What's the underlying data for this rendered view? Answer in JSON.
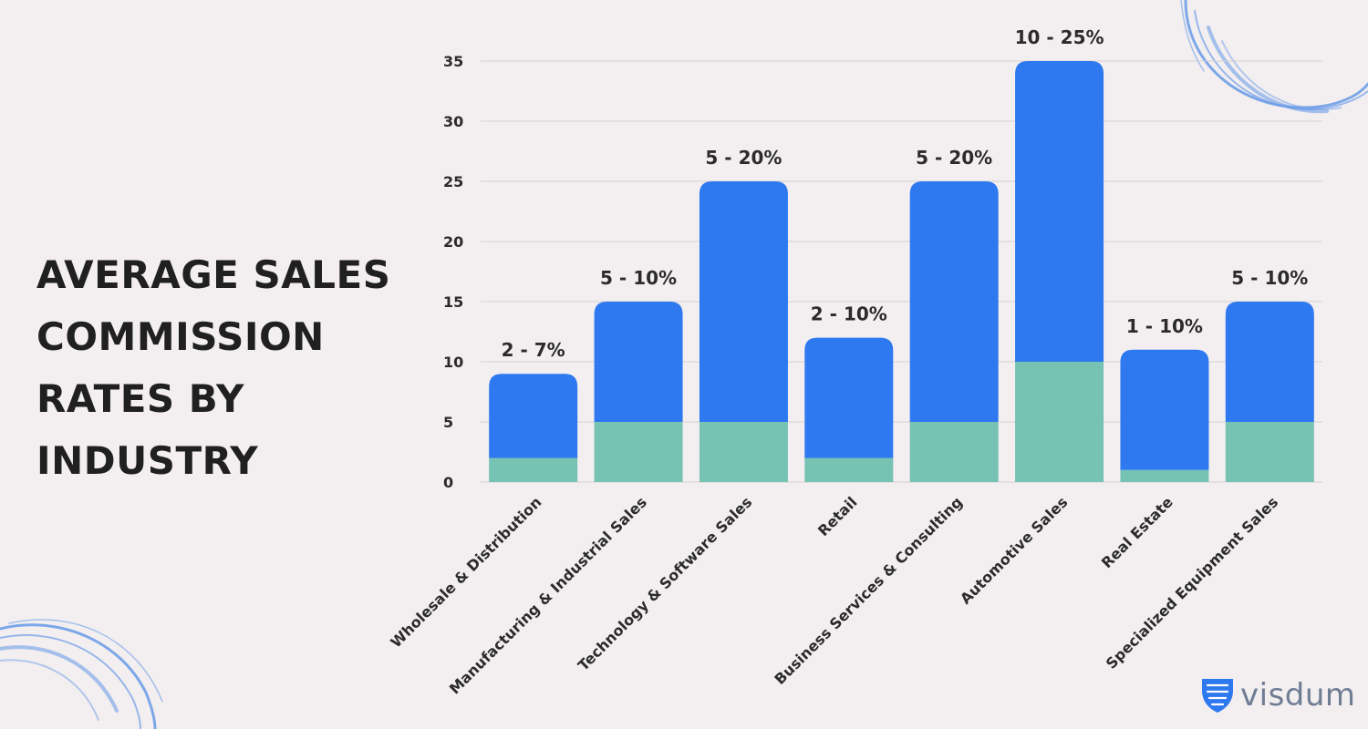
{
  "title": "AVERAGE SALES COMMISSION RATES BY INDUSTRY",
  "brand": {
    "name": "visdum",
    "icon": "shield-icon"
  },
  "colors": {
    "low": "#76c2b3",
    "high": "#2e78f0",
    "grid": "#d4d0d1",
    "text": "#2b2b2b",
    "background": "#f3eff0",
    "decor": "#6f9ee8"
  },
  "chart_data": {
    "type": "bar",
    "stacked": true,
    "categories": [
      "Wholesale & Distribution",
      "Manufacturing & Industrial Sales",
      "Technology & Software Sales",
      "Retail",
      "Business Services & Consulting",
      "Automotive Sales",
      "Real Estate",
      "Specialized Equipment Sales"
    ],
    "series": [
      {
        "values": [
          2,
          5,
          5,
          2,
          5,
          10,
          1,
          5
        ]
      },
      {
        "values": [
          7,
          10,
          20,
          10,
          20,
          25,
          10,
          10
        ]
      }
    ],
    "data_labels": [
      "2 - 7%",
      "5 - 10%",
      "5 - 20%",
      "2 - 10%",
      "5 - 20%",
      "10 - 25%",
      "1 - 10%",
      "5 - 10%"
    ],
    "yticks": [
      0,
      5,
      10,
      15,
      20,
      25,
      30,
      35
    ],
    "ylim": [
      0,
      35
    ],
    "grid": true,
    "legend": "none"
  }
}
